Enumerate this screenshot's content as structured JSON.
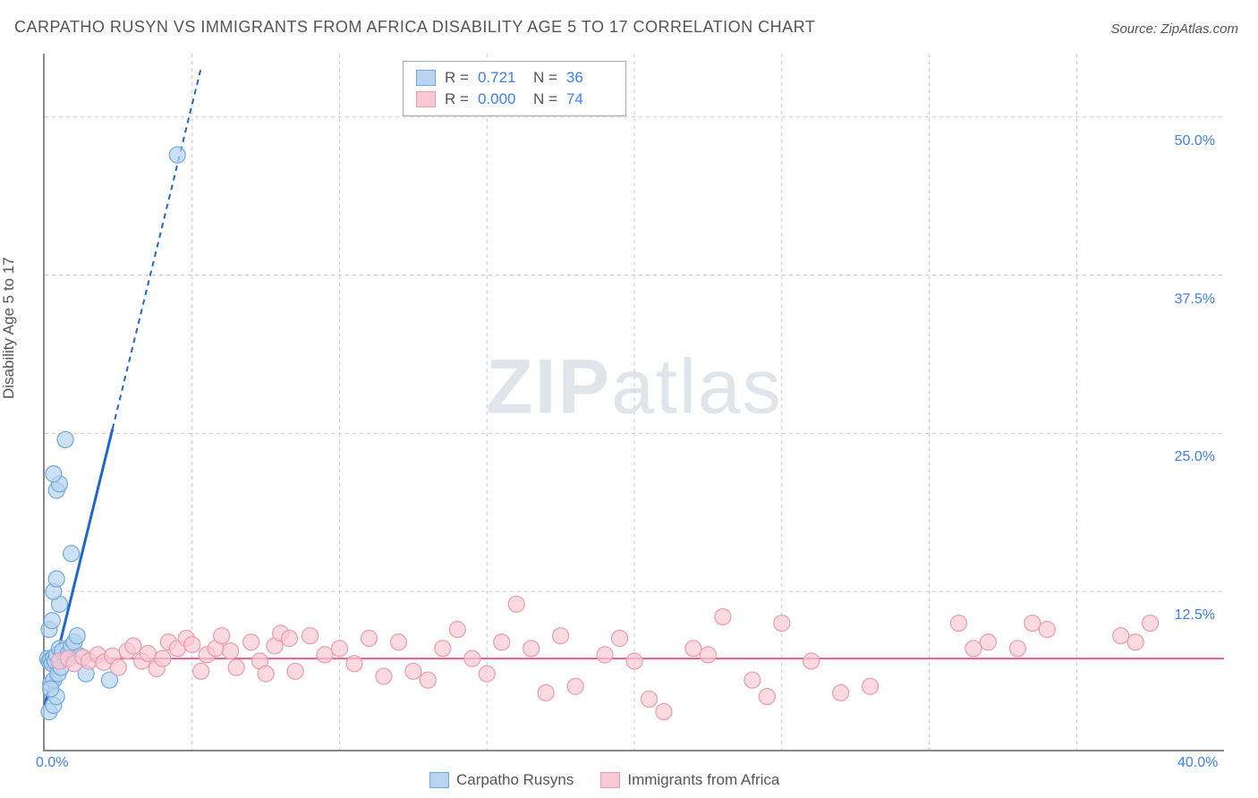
{
  "title": "CARPATHO RUSYN VS IMMIGRANTS FROM AFRICA DISABILITY AGE 5 TO 17 CORRELATION CHART",
  "source": "Source: ZipAtlas.com",
  "ylabel": "Disability Age 5 to 17",
  "watermark_zip": "ZIP",
  "watermark_atlas": "atlas",
  "chart": {
    "type": "scatter",
    "background": "#ffffff",
    "grid_color": "#cccccc",
    "axis_color": "#888888",
    "xlim": [
      0,
      40
    ],
    "ylim": [
      0,
      55
    ],
    "x_ticks_labeled": [
      {
        "v": 0,
        "label": "0.0%"
      },
      {
        "v": 40,
        "label": "40.0%"
      }
    ],
    "x_ticks_grid": [
      5,
      10,
      15,
      20,
      25,
      30,
      35
    ],
    "y_ticks": [
      {
        "v": 12.5,
        "label": "12.5%"
      },
      {
        "v": 25.0,
        "label": "25.0%"
      },
      {
        "v": 37.5,
        "label": "37.5%"
      },
      {
        "v": 50.0,
        "label": "50.0%"
      }
    ],
    "series": [
      {
        "name": "Carpatho Rusyns",
        "color_fill": "#b8d4f0",
        "color_stroke": "#6fa8dc",
        "marker_radius": 9,
        "marker_opacity": 0.7,
        "trend": {
          "slope": 9.5,
          "intercept": 3.5,
          "solid_xmax": 2.3,
          "dash_xmax": 5.3,
          "color": "#1e66d0",
          "width": 3
        },
        "R": "0.721",
        "N": "36",
        "points": [
          [
            0.1,
            7.2
          ],
          [
            0.15,
            7.0
          ],
          [
            0.2,
            7.1
          ],
          [
            0.25,
            6.8
          ],
          [
            0.3,
            7.3
          ],
          [
            0.35,
            7.0
          ],
          [
            0.4,
            7.5
          ],
          [
            0.5,
            8.0
          ],
          [
            0.6,
            7.8
          ],
          [
            0.7,
            7.2
          ],
          [
            0.8,
            7.6
          ],
          [
            0.9,
            8.2
          ],
          [
            1.0,
            8.5
          ],
          [
            1.1,
            9.0
          ],
          [
            1.2,
            7.4
          ],
          [
            1.4,
            6.0
          ],
          [
            0.2,
            5.2
          ],
          [
            0.3,
            5.5
          ],
          [
            0.45,
            6.0
          ],
          [
            0.55,
            6.5
          ],
          [
            0.15,
            9.5
          ],
          [
            0.25,
            10.2
          ],
          [
            0.5,
            11.5
          ],
          [
            0.3,
            12.5
          ],
          [
            0.4,
            13.5
          ],
          [
            0.9,
            15.5
          ],
          [
            0.4,
            20.5
          ],
          [
            0.5,
            21.0
          ],
          [
            0.3,
            21.8
          ],
          [
            0.7,
            24.5
          ],
          [
            0.15,
            3.0
          ],
          [
            0.3,
            3.5
          ],
          [
            0.4,
            4.2
          ],
          [
            0.2,
            4.8
          ],
          [
            2.2,
            5.5
          ],
          [
            4.5,
            47.0
          ]
        ]
      },
      {
        "name": "Immigrants from Africa",
        "color_fill": "#f8c9d4",
        "color_stroke": "#e99bb0",
        "marker_radius": 9,
        "marker_opacity": 0.7,
        "trend": {
          "slope": 0.0,
          "intercept": 7.2,
          "solid_xmax": 40,
          "dash_xmax": 40,
          "color": "#ea5a8f",
          "width": 2
        },
        "R": "0.000",
        "N": "74",
        "points": [
          [
            0.5,
            7.0
          ],
          [
            0.8,
            7.2
          ],
          [
            1.0,
            6.8
          ],
          [
            1.3,
            7.3
          ],
          [
            1.5,
            7.0
          ],
          [
            1.8,
            7.5
          ],
          [
            2.0,
            6.9
          ],
          [
            2.3,
            7.4
          ],
          [
            2.5,
            6.5
          ],
          [
            2.8,
            7.8
          ],
          [
            3.0,
            8.2
          ],
          [
            3.3,
            7.0
          ],
          [
            3.5,
            7.6
          ],
          [
            3.8,
            6.4
          ],
          [
            4.0,
            7.2
          ],
          [
            4.2,
            8.5
          ],
          [
            4.5,
            8.0
          ],
          [
            4.8,
            8.8
          ],
          [
            5.0,
            8.3
          ],
          [
            5.3,
            6.2
          ],
          [
            5.5,
            7.5
          ],
          [
            5.8,
            8.0
          ],
          [
            6.0,
            9.0
          ],
          [
            6.3,
            7.8
          ],
          [
            6.5,
            6.5
          ],
          [
            7.0,
            8.5
          ],
          [
            7.3,
            7.0
          ],
          [
            7.5,
            6.0
          ],
          [
            7.8,
            8.2
          ],
          [
            8.0,
            9.2
          ],
          [
            8.3,
            8.8
          ],
          [
            8.5,
            6.2
          ],
          [
            9.0,
            9.0
          ],
          [
            9.5,
            7.5
          ],
          [
            10.0,
            8.0
          ],
          [
            10.5,
            6.8
          ],
          [
            11.0,
            8.8
          ],
          [
            11.5,
            5.8
          ],
          [
            12.0,
            8.5
          ],
          [
            12.5,
            6.2
          ],
          [
            13.0,
            5.5
          ],
          [
            13.5,
            8.0
          ],
          [
            14.0,
            9.5
          ],
          [
            14.5,
            7.2
          ],
          [
            15.0,
            6.0
          ],
          [
            15.5,
            8.5
          ],
          [
            16.0,
            11.5
          ],
          [
            16.5,
            8.0
          ],
          [
            17.0,
            4.5
          ],
          [
            17.5,
            9.0
          ],
          [
            18.0,
            5.0
          ],
          [
            19.0,
            7.5
          ],
          [
            19.5,
            8.8
          ],
          [
            20.0,
            7.0
          ],
          [
            20.5,
            4.0
          ],
          [
            21.0,
            3.0
          ],
          [
            22.5,
            7.5
          ],
          [
            23.0,
            10.5
          ],
          [
            24.0,
            5.5
          ],
          [
            24.5,
            4.2
          ],
          [
            25.0,
            10.0
          ],
          [
            26.0,
            7.0
          ],
          [
            27.0,
            4.5
          ],
          [
            28.0,
            5.0
          ],
          [
            31.0,
            10.0
          ],
          [
            31.5,
            8.0
          ],
          [
            32.0,
            8.5
          ],
          [
            33.0,
            8.0
          ],
          [
            33.5,
            10.0
          ],
          [
            34.0,
            9.5
          ],
          [
            36.5,
            9.0
          ],
          [
            37.0,
            8.5
          ],
          [
            37.5,
            10.0
          ],
          [
            22.0,
            8.0
          ]
        ]
      }
    ]
  },
  "legend_top_rows": [
    {
      "swatch_fill": "#b8d4f0",
      "swatch_stroke": "#6fa8dc",
      "r_label": "R =",
      "r_val": "0.721",
      "n_label": "N =",
      "n_val": "36"
    },
    {
      "swatch_fill": "#f8c9d4",
      "swatch_stroke": "#e99bb0",
      "r_label": "R =",
      "r_val": "0.000",
      "n_label": "N =",
      "n_val": "74"
    }
  ],
  "legend_bottom": [
    {
      "swatch_fill": "#b8d4f0",
      "swatch_stroke": "#6fa8dc",
      "label": "Carpatho Rusyns"
    },
    {
      "swatch_fill": "#f8c9d4",
      "swatch_stroke": "#e99bb0",
      "label": "Immigrants from Africa"
    }
  ]
}
